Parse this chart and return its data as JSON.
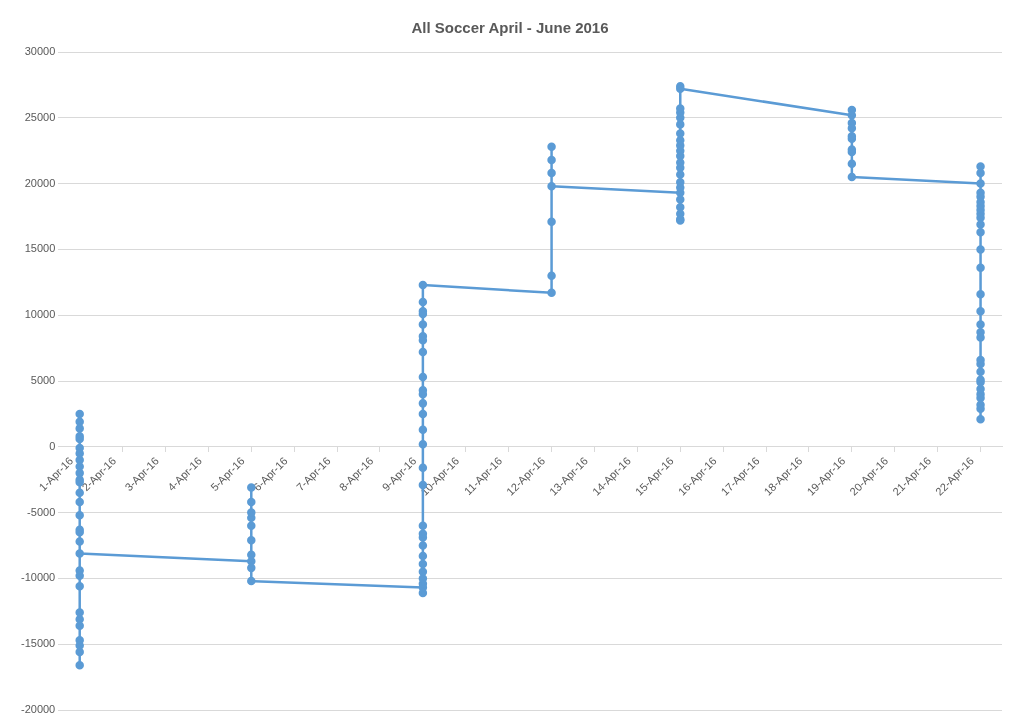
{
  "chart_data": {
    "type": "line",
    "title": "All Soccer April - June 2016",
    "x": [
      "2016-04-01",
      "2016-04-01",
      "2016-04-01",
      "2016-04-01",
      "2016-04-01",
      "2016-04-01",
      "2016-04-01",
      "2016-04-01",
      "2016-04-01",
      "2016-04-01",
      "2016-04-01",
      "2016-04-01",
      "2016-04-01",
      "2016-04-01",
      "2016-04-01",
      "2016-04-01",
      "2016-04-01",
      "2016-04-01",
      "2016-04-01",
      "2016-04-01",
      "2016-04-01",
      "2016-04-01",
      "2016-04-01",
      "2016-04-01",
      "2016-04-01",
      "2016-04-01",
      "2016-04-01",
      "2016-04-01",
      "2016-04-01",
      "2016-04-05",
      "2016-04-05",
      "2016-04-05",
      "2016-04-05",
      "2016-04-05",
      "2016-04-05",
      "2016-04-05",
      "2016-04-05",
      "2016-04-05",
      "2016-04-05",
      "2016-04-09",
      "2016-04-09",
      "2016-04-09",
      "2016-04-09",
      "2016-04-09",
      "2016-04-09",
      "2016-04-09",
      "2016-04-09",
      "2016-04-09",
      "2016-04-09",
      "2016-04-09",
      "2016-04-09",
      "2016-04-09",
      "2016-04-09",
      "2016-04-09",
      "2016-04-09",
      "2016-04-09",
      "2016-04-09",
      "2016-04-09",
      "2016-04-09",
      "2016-04-09",
      "2016-04-09",
      "2016-04-09",
      "2016-04-09",
      "2016-04-09",
      "2016-04-09",
      "2016-04-09",
      "2016-04-09",
      "2016-04-12",
      "2016-04-12",
      "2016-04-12",
      "2016-04-12",
      "2016-04-12",
      "2016-04-12",
      "2016-04-12",
      "2016-04-15",
      "2016-04-15",
      "2016-04-15",
      "2016-04-15",
      "2016-04-15",
      "2016-04-15",
      "2016-04-15",
      "2016-04-15",
      "2016-04-15",
      "2016-04-15",
      "2016-04-15",
      "2016-04-15",
      "2016-04-15",
      "2016-04-15",
      "2016-04-15",
      "2016-04-15",
      "2016-04-15",
      "2016-04-15",
      "2016-04-15",
      "2016-04-15",
      "2016-04-15",
      "2016-04-15",
      "2016-04-19",
      "2016-04-19",
      "2016-04-19",
      "2016-04-19",
      "2016-04-19",
      "2016-04-19",
      "2016-04-19",
      "2016-04-19",
      "2016-04-19",
      "2016-04-19",
      "2016-04-22",
      "2016-04-22",
      "2016-04-22",
      "2016-04-22",
      "2016-04-22",
      "2016-04-22",
      "2016-04-22",
      "2016-04-22",
      "2016-04-22",
      "2016-04-22",
      "2016-04-22",
      "2016-04-22",
      "2016-04-22",
      "2016-04-22",
      "2016-04-22",
      "2016-04-22",
      "2016-04-22",
      "2016-04-22",
      "2016-04-22",
      "2016-04-22",
      "2016-04-22",
      "2016-04-22",
      "2016-04-22",
      "2016-04-22",
      "2016-04-22",
      "2016-04-22",
      "2016-04-22",
      "2016-04-22",
      "2016-04-22",
      "2016-04-22"
    ],
    "series": [
      {
        "color": "#5b9bd5",
        "values": [
          2500,
          1900,
          1400,
          800,
          600,
          -100,
          -500,
          -1000,
          -1500,
          -2000,
          -2500,
          -2700,
          -3500,
          -4200,
          -5200,
          -6300,
          -6500,
          -7200,
          -9400,
          -9800,
          -10600,
          -12600,
          -13100,
          -13600,
          -14700,
          -15100,
          -15600,
          -16600,
          -8100,
          -8700,
          -8200,
          -7100,
          -6000,
          -5400,
          -5000,
          -4200,
          -3100,
          -9200,
          -10200,
          -10700,
          -11100,
          -10400,
          -10000,
          -9500,
          -8900,
          -8300,
          -7500,
          -6900,
          -6600,
          -6000,
          -2900,
          -1600,
          200,
          1300,
          2500,
          3300,
          4000,
          4300,
          5300,
          7200,
          8100,
          8400,
          9300,
          10100,
          10300,
          11000,
          12300,
          11700,
          13000,
          17100,
          20800,
          21800,
          22800,
          19800,
          19300,
          18800,
          18200,
          17700,
          17300,
          17200,
          19700,
          20100,
          20700,
          21200,
          21600,
          22100,
          22500,
          22900,
          23300,
          23800,
          24500,
          25000,
          25400,
          25700,
          27400,
          27200,
          25200,
          25600,
          24600,
          24200,
          23600,
          23400,
          22600,
          22400,
          21500,
          20500,
          20000,
          20800,
          21300,
          19300,
          19000,
          18600,
          18300,
          18000,
          17700,
          17400,
          16900,
          16300,
          15000,
          13600,
          11600,
          10300,
          9300,
          8700,
          8300,
          6600,
          6300,
          5700,
          5100,
          4900,
          4400,
          4000,
          3700,
          3200,
          2900,
          2100
        ]
      }
    ],
    "xlim": [
      "2016-03-31T12:00",
      "2016-04-22T12:00"
    ],
    "xticks": [
      {
        "value": "2016-04-01",
        "label": "1-Apr-16"
      },
      {
        "value": "2016-04-02",
        "label": "2-Apr-16"
      },
      {
        "value": "2016-04-03",
        "label": "3-Apr-16"
      },
      {
        "value": "2016-04-04",
        "label": "4-Apr-16"
      },
      {
        "value": "2016-04-05",
        "label": "5-Apr-16"
      },
      {
        "value": "2016-04-06",
        "label": "6-Apr-16"
      },
      {
        "value": "2016-04-07",
        "label": "7-Apr-16"
      },
      {
        "value": "2016-04-08",
        "label": "8-Apr-16"
      },
      {
        "value": "2016-04-09",
        "label": "9-Apr-16"
      },
      {
        "value": "2016-04-10",
        "label": "10-Apr-16"
      },
      {
        "value": "2016-04-11",
        "label": "11-Apr-16"
      },
      {
        "value": "2016-04-12",
        "label": "12-Apr-16"
      },
      {
        "value": "2016-04-13",
        "label": "13-Apr-16"
      },
      {
        "value": "2016-04-14",
        "label": "14-Apr-16"
      },
      {
        "value": "2016-04-15",
        "label": "15-Apr-16"
      },
      {
        "value": "2016-04-16",
        "label": "16-Apr-16"
      },
      {
        "value": "2016-04-17",
        "label": "17-Apr-16"
      },
      {
        "value": "2016-04-18",
        "label": "18-Apr-16"
      },
      {
        "value": "2016-04-19",
        "label": "19-Apr-16"
      },
      {
        "value": "2016-04-20",
        "label": "20-Apr-16"
      },
      {
        "value": "2016-04-21",
        "label": "21-Apr-16"
      },
      {
        "value": "2016-04-22",
        "label": "22-Apr-16"
      }
    ],
    "ylim": [
      -20000,
      30000
    ],
    "yticks": [
      -20000,
      -15000,
      -10000,
      -5000,
      0,
      5000,
      10000,
      15000,
      20000,
      25000,
      30000
    ],
    "grid": "y",
    "legend": false,
    "marker": "circle",
    "line_style": "solid"
  }
}
